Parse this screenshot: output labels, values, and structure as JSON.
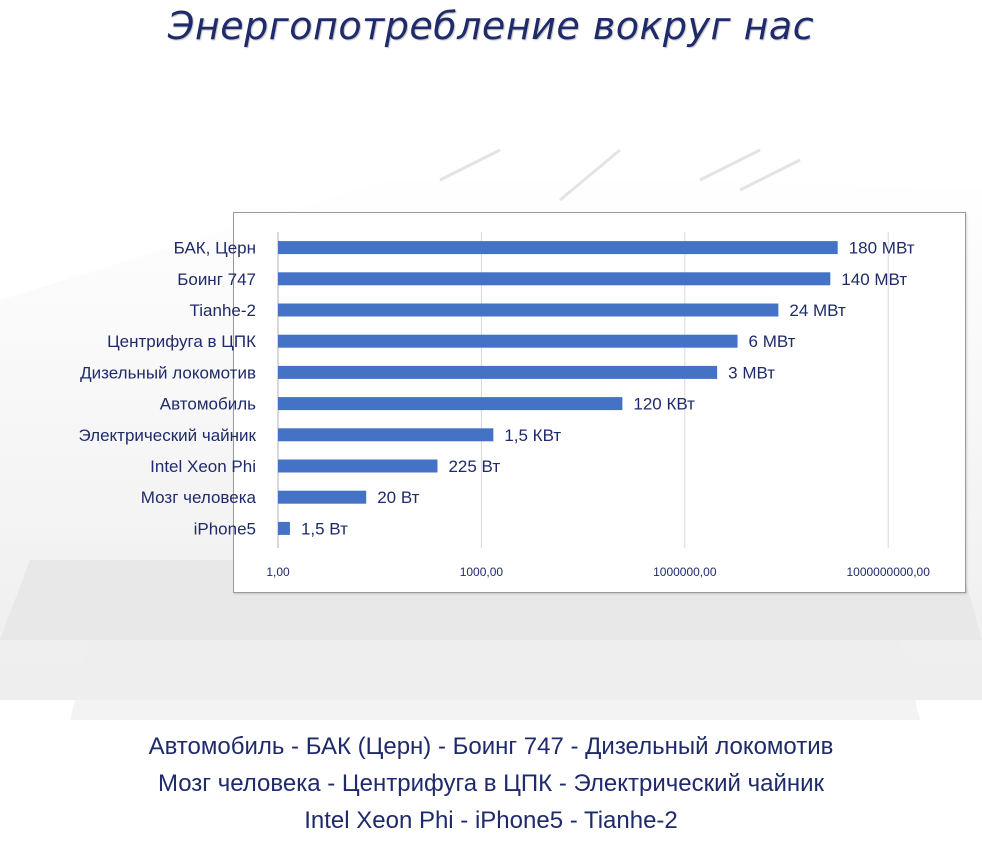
{
  "title": "Энергопотребление вокруг нас",
  "colors": {
    "bar": "#4472c4",
    "text": "#1f2a6b",
    "grid": "#d9d9d9"
  },
  "chart_data": {
    "type": "bar",
    "orientation": "horizontal",
    "x_scale": "log10",
    "xlim": [
      1,
      1000000000
    ],
    "x_ticks": [
      1,
      1000,
      1000000,
      1000000000
    ],
    "x_tick_labels": [
      "1,00",
      "1000,00",
      "1000000,00",
      "1000000000,00"
    ],
    "grid": true,
    "categories": [
      "БАК, Церн",
      "Боинг 747",
      "Tianhe-2",
      "Центрифуга в ЦПК",
      "Дизельный локомотив",
      "Автомобиль",
      "Электрический чайник",
      "Intel Xeon Phi",
      "Мозг человека",
      "iPhone5"
    ],
    "values": [
      180000000,
      140000000,
      24000000,
      6000000,
      3000000,
      120000,
      1500,
      225,
      20,
      1.5
    ],
    "value_labels": [
      "180 МВт",
      "140 МВт",
      "24 МВт",
      "6 МВт",
      "3 МВт",
      "120 КВт",
      "1,5 КВт",
      "225 Вт",
      "20 Вт",
      "1,5 Вт"
    ]
  },
  "caption_lines": [
    "Автомобиль - БАК (Церн) - Боинг 747 - Дизельный локомотив",
    "Мозг человека - Центрифуга в ЦПК - Электрический чайник",
    "Intel Xeon Phi - iPhone5 - Tianhe-2"
  ]
}
